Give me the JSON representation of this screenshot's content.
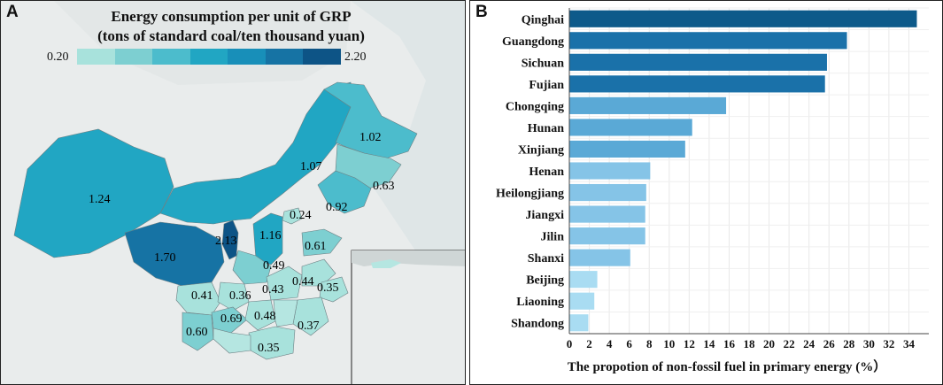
{
  "panel_a": {
    "letter": "A",
    "legend": {
      "title_line1": "Energy consumption per unit of GRP",
      "title_line2": "(tons of standard coal/ten thousand yuan)",
      "min_label": "0.20",
      "max_label": "2.20",
      "colors": [
        "#a8e2dc",
        "#7dcfd1",
        "#4cbccc",
        "#21a6c3",
        "#188fb9",
        "#1673a4",
        "#0d5486"
      ]
    },
    "map_values": [
      {
        "label": "1.24",
        "value": 1.24
      },
      {
        "label": "1.70",
        "value": 1.7
      },
      {
        "label": "2.13",
        "value": 2.13
      },
      {
        "label": "1.07",
        "value": 1.07
      },
      {
        "label": "1.02",
        "value": 1.02
      },
      {
        "label": "0.63",
        "value": 0.63
      },
      {
        "label": "0.92",
        "value": 0.92
      },
      {
        "label": "0.24",
        "value": 0.24
      },
      {
        "label": "1.16",
        "value": 1.16
      },
      {
        "label": "0.61",
        "value": 0.61
      },
      {
        "label": "0.49",
        "value": 0.49
      },
      {
        "label": "0.41",
        "value": 0.41
      },
      {
        "label": "0.36",
        "value": 0.36
      },
      {
        "label": "0.43",
        "value": 0.43
      },
      {
        "label": "0.44",
        "value": 0.44
      },
      {
        "label": "0.35",
        "value": 0.35
      },
      {
        "label": "0.69",
        "value": 0.69
      },
      {
        "label": "0.48",
        "value": 0.48
      },
      {
        "label": "0.37",
        "value": 0.37
      },
      {
        "label": "0.60",
        "value": 0.6
      },
      {
        "label": "0.35",
        "value": 0.35
      }
    ]
  },
  "chart_data": {
    "type": "bar",
    "orientation": "horizontal",
    "panel_letter": "B",
    "categories": [
      "Qinghai",
      "Guangdong",
      "Sichuan",
      "Fujian",
      "Chongqing",
      "Hunan",
      "Xinjiang",
      "Henan",
      "Heilongjiang",
      "Jiangxi",
      "Jilin",
      "Shanxi",
      "Beijing",
      "Liaoning",
      "Shandong"
    ],
    "values": [
      34.8,
      27.8,
      25.8,
      25.6,
      15.7,
      12.3,
      11.6,
      8.1,
      7.7,
      7.6,
      7.6,
      6.1,
      2.8,
      2.5,
      1.9
    ],
    "colors": [
      "#0d5a8a",
      "#1a71a9",
      "#1a71a9",
      "#1a71a9",
      "#5aa9d6",
      "#5aa9d6",
      "#5aa9d6",
      "#85c4e7",
      "#85c4e7",
      "#85c4e7",
      "#85c4e7",
      "#85c4e7",
      "#a9dcf2",
      "#a9dcf2",
      "#a9dcf2"
    ],
    "xlim": [
      0,
      36
    ],
    "xticks": [
      "0",
      "2",
      "4",
      "6",
      "8",
      "10",
      "12",
      "14",
      "16",
      "18",
      "20",
      "22",
      "24",
      "26",
      "28",
      "30",
      "32",
      "34"
    ],
    "xlabel": "The propotion of non-fossil fuel in primary energy (%）",
    "grid": true
  }
}
